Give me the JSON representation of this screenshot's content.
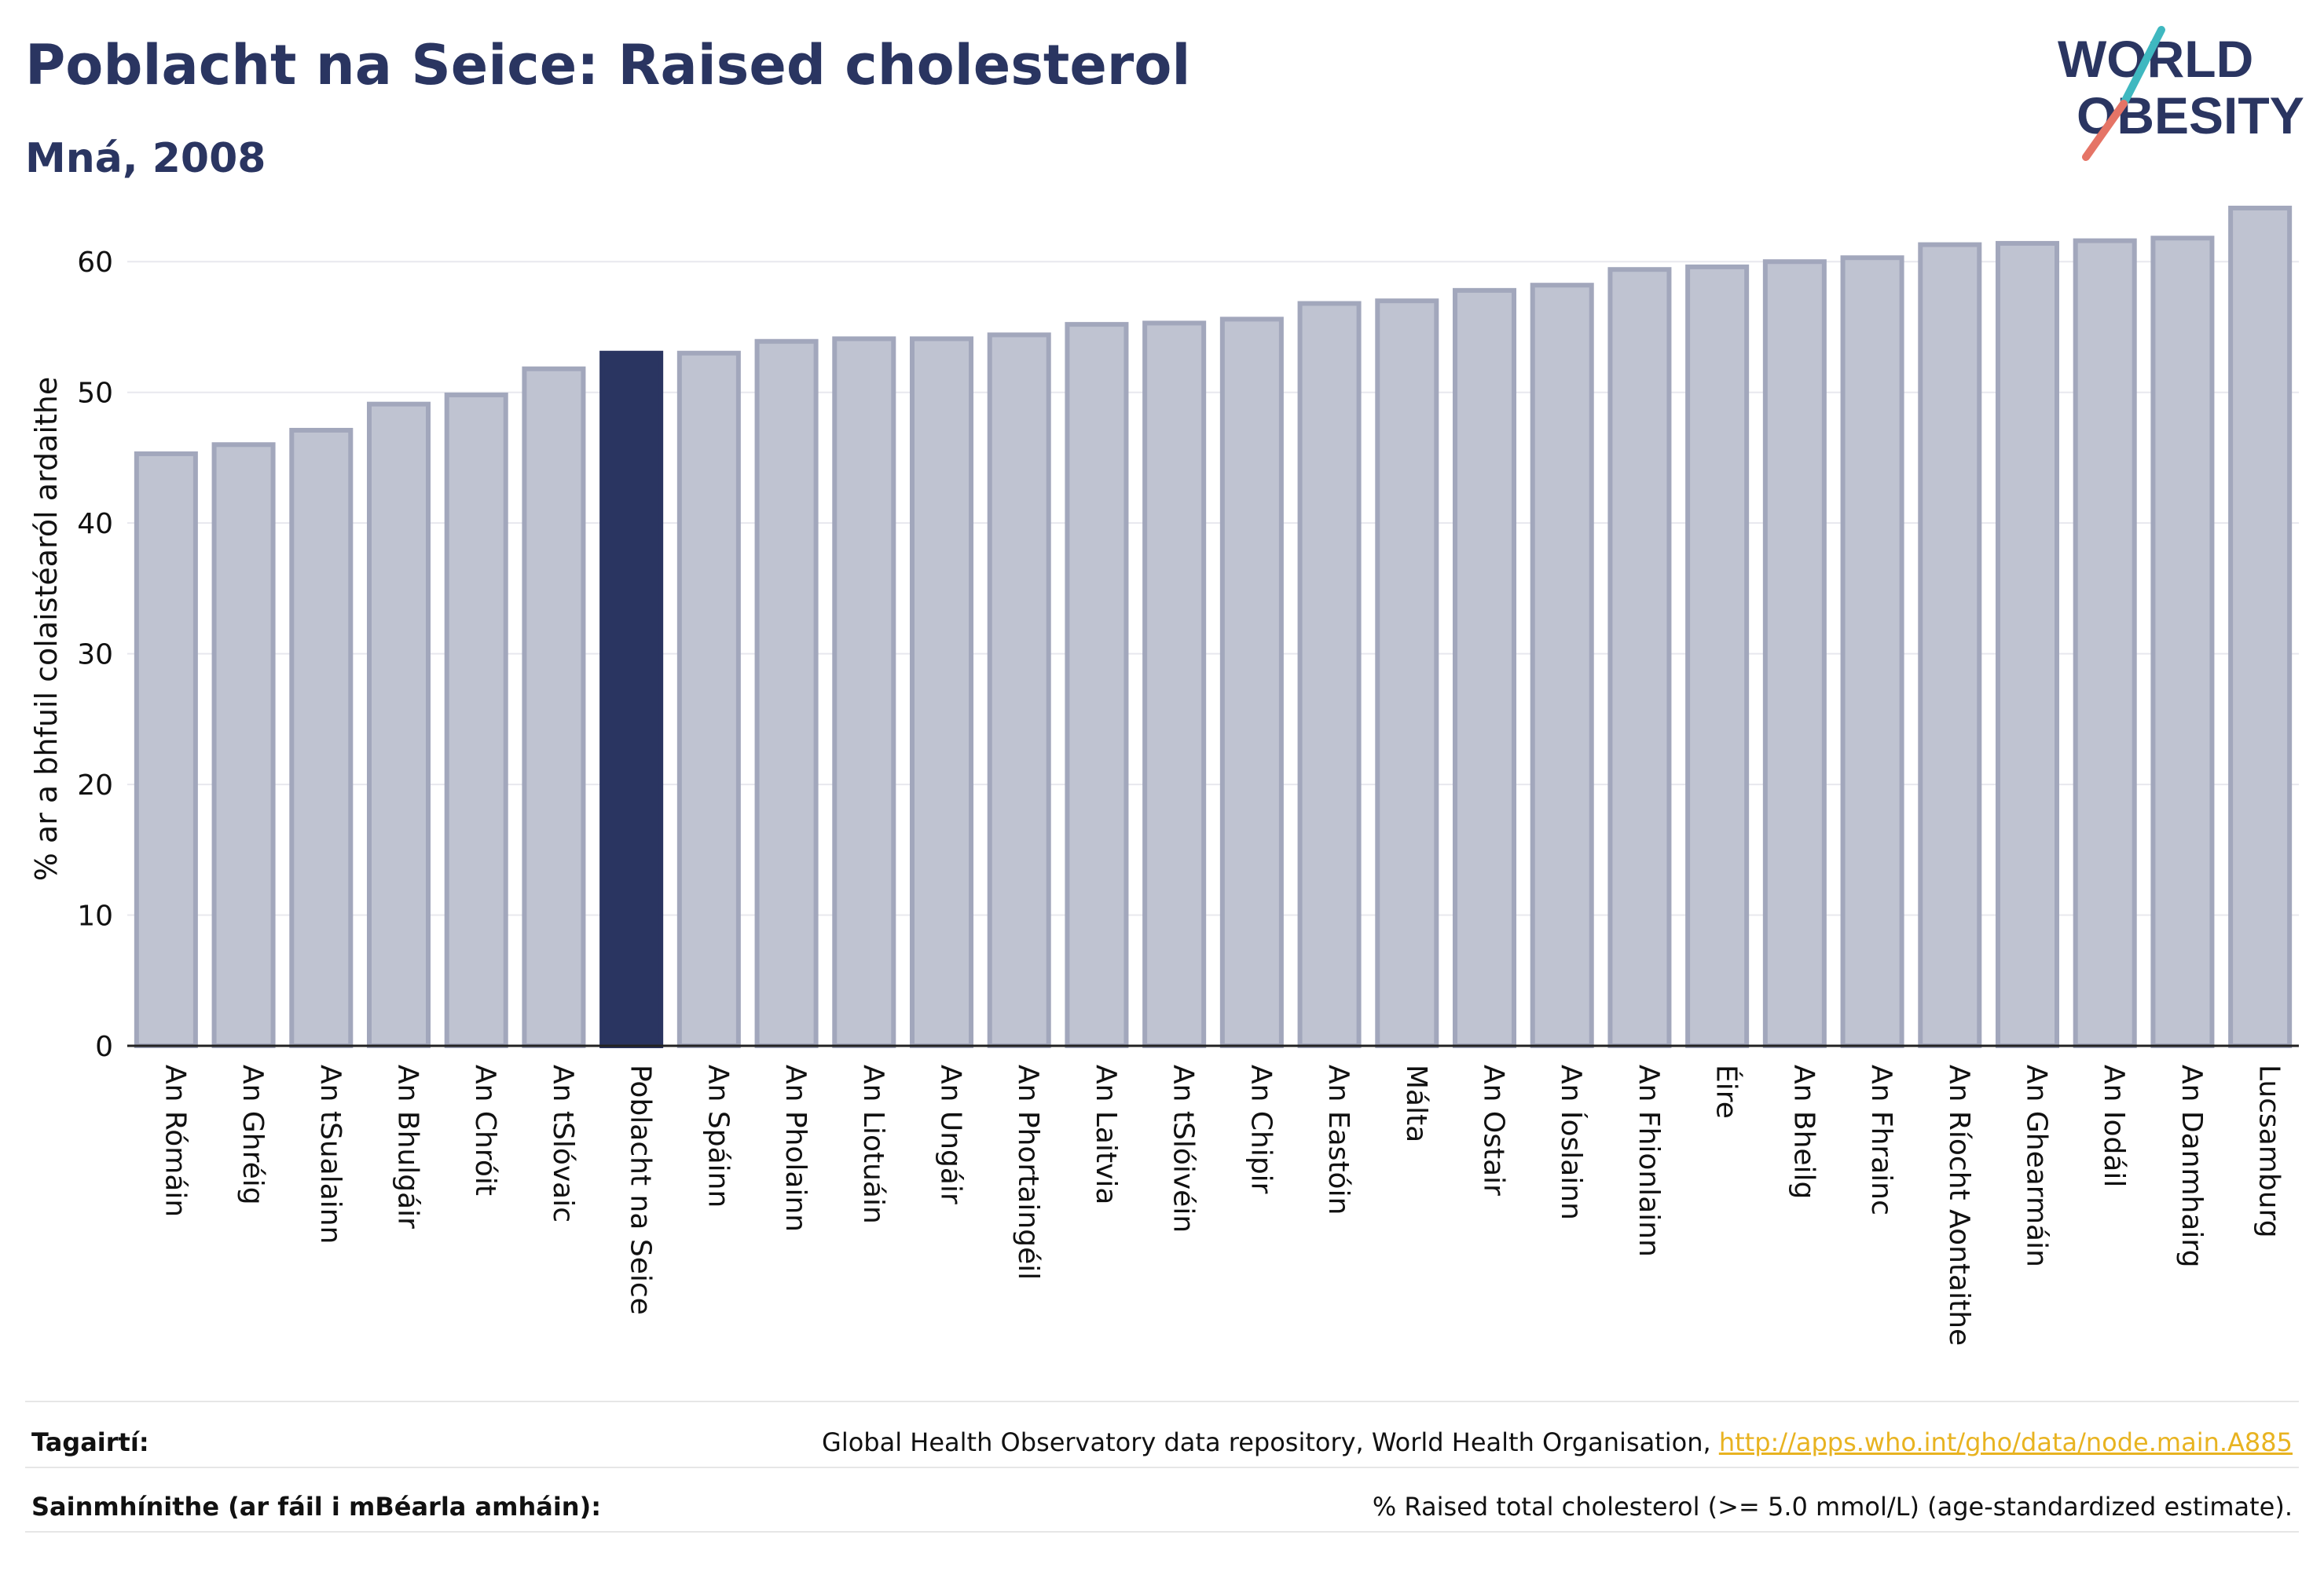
{
  "header": {
    "title": "Poblacht na Seice: Raised cholesterol",
    "subtitle": "Mná, 2008"
  },
  "logo": {
    "line1": "WORLD",
    "line2": "OBESITY"
  },
  "chart_data": {
    "type": "bar",
    "ylabel": "% ar a bhfuil colaistéaról ardaithe",
    "ylim": [
      0,
      65
    ],
    "yticks": [
      0,
      10,
      20,
      30,
      40,
      50,
      60
    ],
    "grid": true,
    "highlight": "Poblacht na Seice",
    "colors": {
      "bar": "#bfc3d1",
      "bar_edge": "#a2a7bc",
      "highlight": "#2a3561",
      "axis": "#222222"
    },
    "categories": [
      "An Rómáin",
      "An Ghréig",
      "An tSualainn",
      "An Bhulgáir",
      "An Chróit",
      "An tSlóvaic",
      "Poblacht na Seice",
      "An Spáinn",
      "An Pholainn",
      "An Liotuáin",
      "An Ungáir",
      "An Phortaingéil",
      "An Laitvia",
      "An tSlóivéin",
      "An Chipir",
      "An Eastóin",
      "Málta",
      "An Ostair",
      "An Íoslainn",
      "An Fhionlainn",
      "Éire",
      "An Bheilg",
      "An Fhrainc",
      "An Ríocht Aontaithe",
      "An Ghearmáin",
      "An Iodáil",
      "An Danmhairg",
      "Lucsamburg"
    ],
    "values": [
      45.3,
      46.0,
      47.1,
      49.1,
      49.8,
      51.8,
      53.0,
      53.0,
      53.9,
      54.1,
      54.1,
      54.4,
      55.2,
      55.3,
      55.6,
      56.8,
      57.0,
      57.8,
      58.2,
      59.4,
      59.6,
      60.0,
      60.3,
      61.3,
      61.4,
      61.6,
      61.8,
      64.1
    ]
  },
  "footer": {
    "references_label": "Tagairtí:",
    "references_text": "Global Health Observatory data repository, World Health Organisation, ",
    "references_link": "http://apps.who.int/gho/data/node.main.A885",
    "definitions_label": "Sainmhínithe (ar fáil i mBéarla amháin):",
    "definitions_text": "% Raised total cholesterol (>= 5.0 mmol/L) (age-standardized estimate)."
  }
}
